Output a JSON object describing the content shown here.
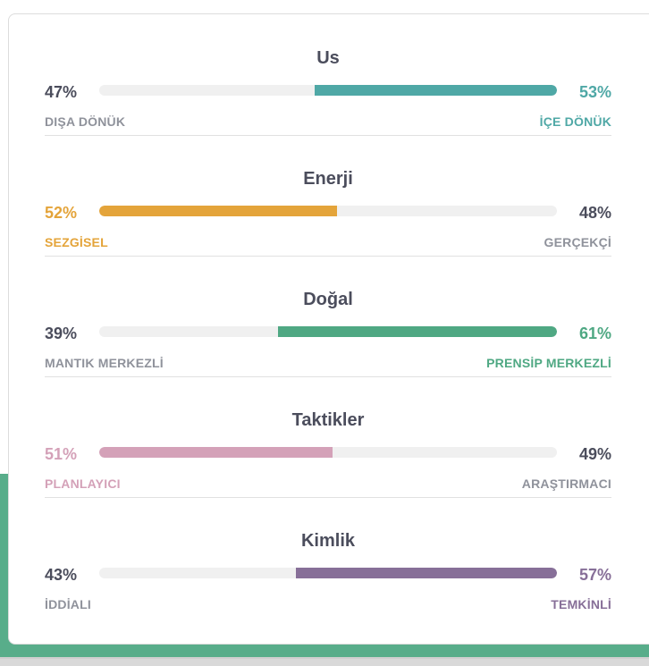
{
  "traits": [
    {
      "title": "Us",
      "left": {
        "percent": "47%",
        "label": "DIŞA DÖNÜK"
      },
      "right": {
        "percent": "53%",
        "label": "İÇE DÖNÜK"
      },
      "dominant_side": "right",
      "dominant_value": 53,
      "color": "#4fa8a6"
    },
    {
      "title": "Enerji",
      "left": {
        "percent": "52%",
        "label": "SEZGİSEL"
      },
      "right": {
        "percent": "48%",
        "label": "GERÇEKÇİ"
      },
      "dominant_side": "left",
      "dominant_value": 52,
      "color": "#e4a43a"
    },
    {
      "title": "Doğal",
      "left": {
        "percent": "39%",
        "label": "MANTIK MERKEZLİ"
      },
      "right": {
        "percent": "61%",
        "label": "PRENSİP MERKEZLİ"
      },
      "dominant_side": "right",
      "dominant_value": 61,
      "color": "#4fa883"
    },
    {
      "title": "Taktikler",
      "left": {
        "percent": "51%",
        "label": "PLANLAYICI"
      },
      "right": {
        "percent": "49%",
        "label": "ARAŞTIRMACI"
      },
      "dominant_side": "left",
      "dominant_value": 51,
      "color": "#d4a1b8"
    },
    {
      "title": "Kimlik",
      "left": {
        "percent": "43%",
        "label": "İDDİALI"
      },
      "right": {
        "percent": "57%",
        "label": "TEMKİNLİ"
      },
      "dominant_side": "right",
      "dominant_value": 57,
      "color": "#876f98"
    }
  ],
  "colors": {
    "title": "#4b4d5c",
    "neutral_text": "#4b4d5c",
    "neutral_label": "#8f929b",
    "track": "#f0f0f0",
    "background_accent": "#58ad8a"
  }
}
